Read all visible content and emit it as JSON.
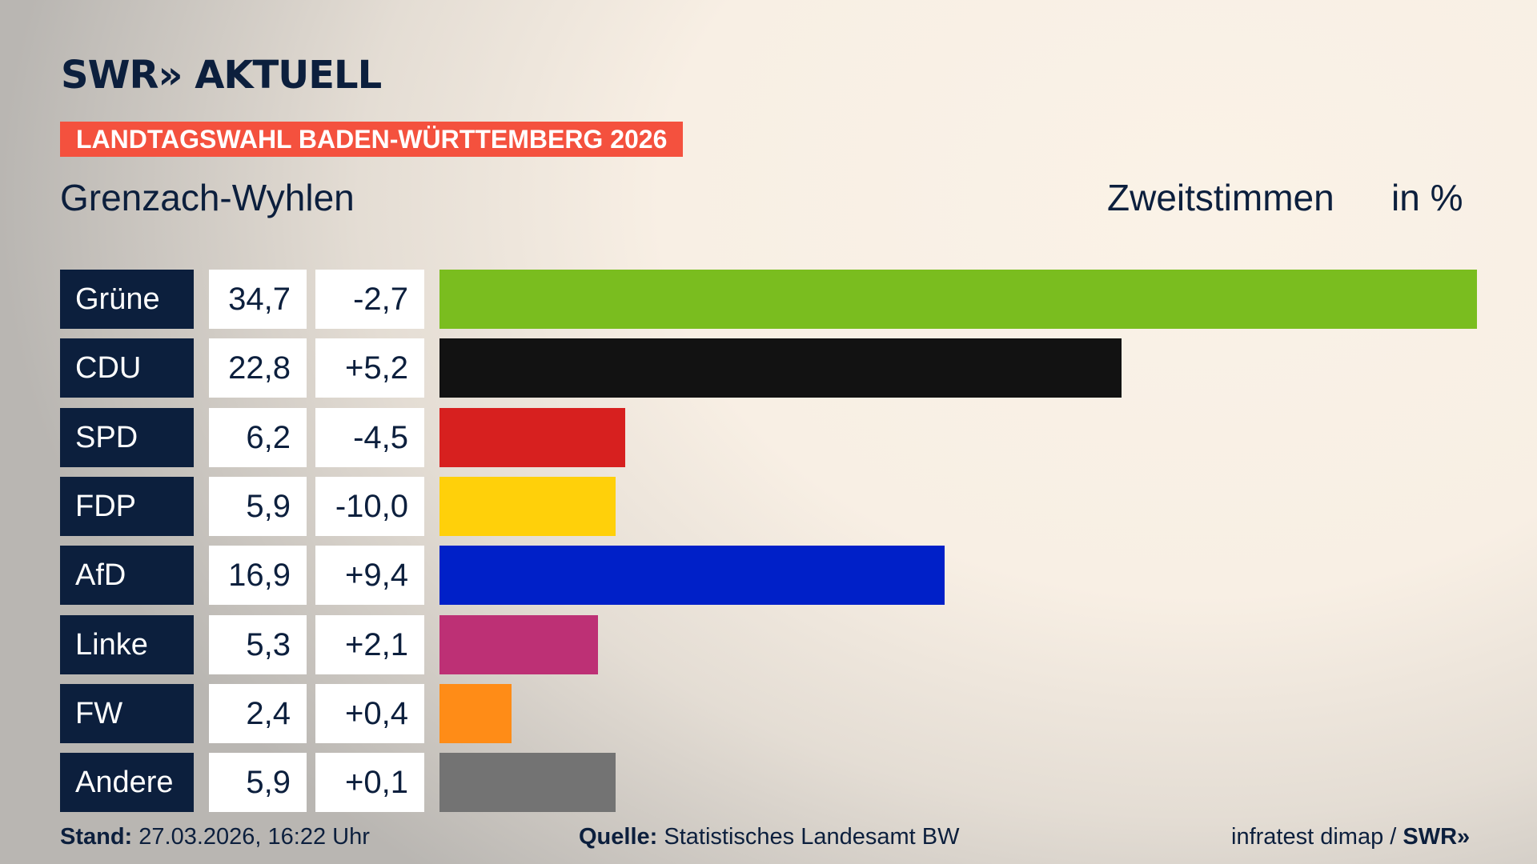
{
  "header": {
    "logo": "SWR» AKTUELL",
    "banner": "LANDTAGSWAHL BADEN-WÜRTTEMBERG 2026",
    "region": "Grenzach-Wyhlen",
    "vote_type": "Zweitstimmen",
    "unit": "in %"
  },
  "chart_data": {
    "type": "bar",
    "orientation": "horizontal",
    "categories": [
      "Grüne",
      "CDU",
      "SPD",
      "FDP",
      "AfD",
      "Linke",
      "FW",
      "Andere"
    ],
    "values": [
      34.7,
      22.8,
      6.2,
      5.9,
      16.9,
      5.3,
      2.4,
      5.9
    ],
    "values_label": [
      "34,7",
      "22,8",
      "6,2",
      "5,9",
      "16,9",
      "5,3",
      "2,4",
      "5,9"
    ],
    "changes": [
      -2.7,
      5.2,
      -4.5,
      -10.0,
      9.4,
      2.1,
      0.4,
      0.1
    ],
    "changes_label": [
      "-2,7",
      "+5,2",
      "-4,5",
      "-10,0",
      "+9,4",
      "+2,1",
      "+0,4",
      "+0,1"
    ],
    "colors": [
      "#7abd1f",
      "#121212",
      "#d7201f",
      "#ffd00a",
      "#0020c8",
      "#bd3075",
      "#ff8c17",
      "#737373"
    ],
    "xlim": [
      0,
      34.7
    ]
  },
  "footer": {
    "stand_label": "Stand:",
    "stand_value": "27.03.2026, 16:22 Uhr",
    "source_label": "Quelle:",
    "source_value": "Statistisches Landesamt BW",
    "credit": "infratest dimap /",
    "credit_logo": "SWR»"
  },
  "accent": {
    "navy": "#0c1f3d",
    "red": "#f4513e"
  }
}
